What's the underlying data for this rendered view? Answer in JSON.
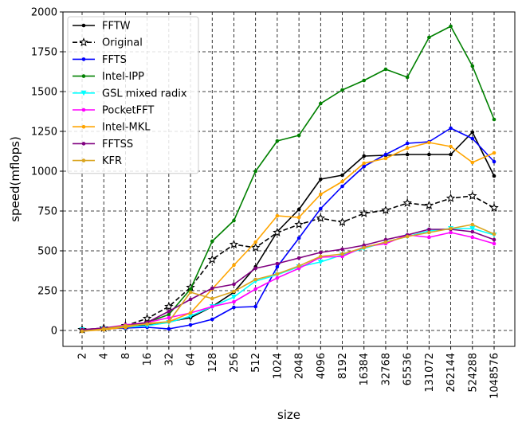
{
  "chart_data": {
    "type": "line",
    "title": "",
    "xlabel": "size",
    "ylabel": "speed(mflops)",
    "categories": [
      "2",
      "4",
      "8",
      "16",
      "32",
      "64",
      "128",
      "256",
      "512",
      "1024",
      "2048",
      "4096",
      "8192",
      "16384",
      "32768",
      "65536",
      "131072",
      "262144",
      "524288",
      "1048576"
    ],
    "ylim": [
      -100,
      2000
    ],
    "yticks": [
      0,
      250,
      500,
      750,
      1000,
      1250,
      1500,
      1750,
      2000
    ],
    "grid": true,
    "legend_position": "top-left",
    "series": [
      {
        "name": "FFTW",
        "color": "#000000",
        "marker": "dot",
        "dashed": false,
        "values": [
          5,
          10,
          20,
          35,
          55,
          80,
          150,
          240,
          400,
          620,
          760,
          950,
          975,
          1095,
          1100,
          1105,
          1105,
          1105,
          1245,
          970
        ]
      },
      {
        "name": "Original",
        "color": "#000000",
        "marker": "star",
        "dashed": true,
        "values": [
          5,
          15,
          30,
          75,
          150,
          270,
          445,
          540,
          520,
          615,
          665,
          705,
          680,
          735,
          755,
          800,
          785,
          830,
          845,
          770
        ]
      },
      {
        "name": "FFTS",
        "color": "#0000ff",
        "marker": "dot",
        "dashed": false,
        "values": [
          5,
          10,
          15,
          20,
          10,
          35,
          70,
          145,
          150,
          400,
          580,
          765,
          905,
          1030,
          1105,
          1175,
          1185,
          1270,
          1205,
          1060
        ]
      },
      {
        "name": "Intel-IPP",
        "color": "#008000",
        "marker": "dot",
        "dashed": false,
        "values": [
          5,
          10,
          25,
          50,
          100,
          260,
          560,
          690,
          1000,
          1190,
          1225,
          1425,
          1510,
          1570,
          1640,
          1590,
          1840,
          1910,
          1660,
          1325
        ]
      },
      {
        "name": "GSL mixed radix",
        "color": "#00ffff",
        "marker": "tri",
        "dashed": false,
        "values": [
          5,
          10,
          20,
          30,
          50,
          90,
          150,
          210,
          310,
          350,
          400,
          430,
          475,
          515,
          555,
          590,
          625,
          640,
          640,
          600
        ]
      },
      {
        "name": "PocketFFT",
        "color": "#ff00ff",
        "marker": "dot",
        "dashed": false,
        "values": [
          5,
          15,
          35,
          50,
          80,
          110,
          150,
          180,
          260,
          330,
          390,
          460,
          465,
          525,
          545,
          600,
          585,
          615,
          585,
          545
        ]
      },
      {
        "name": "Intel-MKL",
        "color": "#ffa500",
        "marker": "dot",
        "dashed": false,
        "values": [
          -5,
          5,
          20,
          45,
          55,
          110,
          260,
          410,
          555,
          720,
          710,
          855,
          935,
          1050,
          1080,
          1145,
          1180,
          1155,
          1055,
          1115
        ]
      },
      {
        "name": "FFTSS",
        "color": "#800080",
        "marker": "dot",
        "dashed": false,
        "values": [
          5,
          15,
          30,
          50,
          120,
          195,
          265,
          290,
          390,
          420,
          455,
          490,
          510,
          535,
          570,
          600,
          635,
          635,
          620,
          570
        ]
      },
      {
        "name": "KFR",
        "color": "#daa520",
        "marker": "dot",
        "dashed": false,
        "values": [
          -5,
          10,
          30,
          40,
          55,
          240,
          200,
          245,
          320,
          355,
          405,
          465,
          480,
          520,
          555,
          590,
          615,
          640,
          665,
          605
        ]
      }
    ]
  }
}
